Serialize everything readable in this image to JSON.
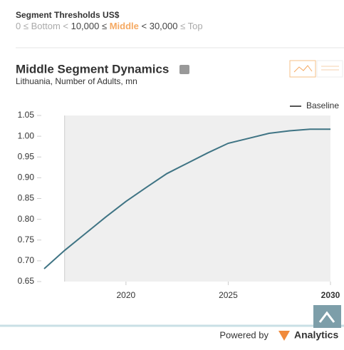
{
  "thresholds": {
    "title": "Segment Thresholds US$",
    "parts": [
      "0 ≤ Bottom < ",
      "10,000",
      " ≤ ",
      "Middle",
      " < ",
      "30,000",
      " ≤ Top"
    ]
  },
  "chart_data": {
    "type": "line",
    "title": "Middle Segment Dynamics",
    "subtitle": "Lithuania, Number of Adults, mn",
    "x": [
      2016,
      2017,
      2018,
      2019,
      2020,
      2021,
      2022,
      2023,
      2024,
      2025,
      2026,
      2027,
      2028,
      2029,
      2030
    ],
    "series": [
      {
        "name": "Baseline",
        "color": "#3f7484",
        "values": [
          0.681,
          0.725,
          0.765,
          0.805,
          0.843,
          0.877,
          0.91,
          0.935,
          0.96,
          0.983,
          0.995,
          1.007,
          1.013,
          1.017,
          1.017
        ]
      }
    ],
    "xlim": [
      2016,
      2030
    ],
    "xticks": [
      2020,
      2025,
      2030
    ],
    "ylim": [
      0.65,
      1.05
    ],
    "yticks": [
      {
        "value": 0.65,
        "label": "0.65"
      },
      {
        "value": 0.7,
        "label": "0.70"
      },
      {
        "value": 0.75,
        "label": "0.75"
      },
      {
        "value": 0.8,
        "label": "0.80"
      },
      {
        "value": 0.85,
        "label": "0.85"
      },
      {
        "value": 0.9,
        "label": "0.90"
      },
      {
        "value": 0.95,
        "label": "0.95"
      },
      {
        "value": 1.0,
        "label": "1.00"
      },
      {
        "value": 1.05,
        "label": "1.05"
      }
    ],
    "shaded_xrange": [
      2017,
      2030
    ],
    "legend": "top-right"
  },
  "footer": {
    "powered": "Powered by",
    "brand": "Analytics"
  }
}
